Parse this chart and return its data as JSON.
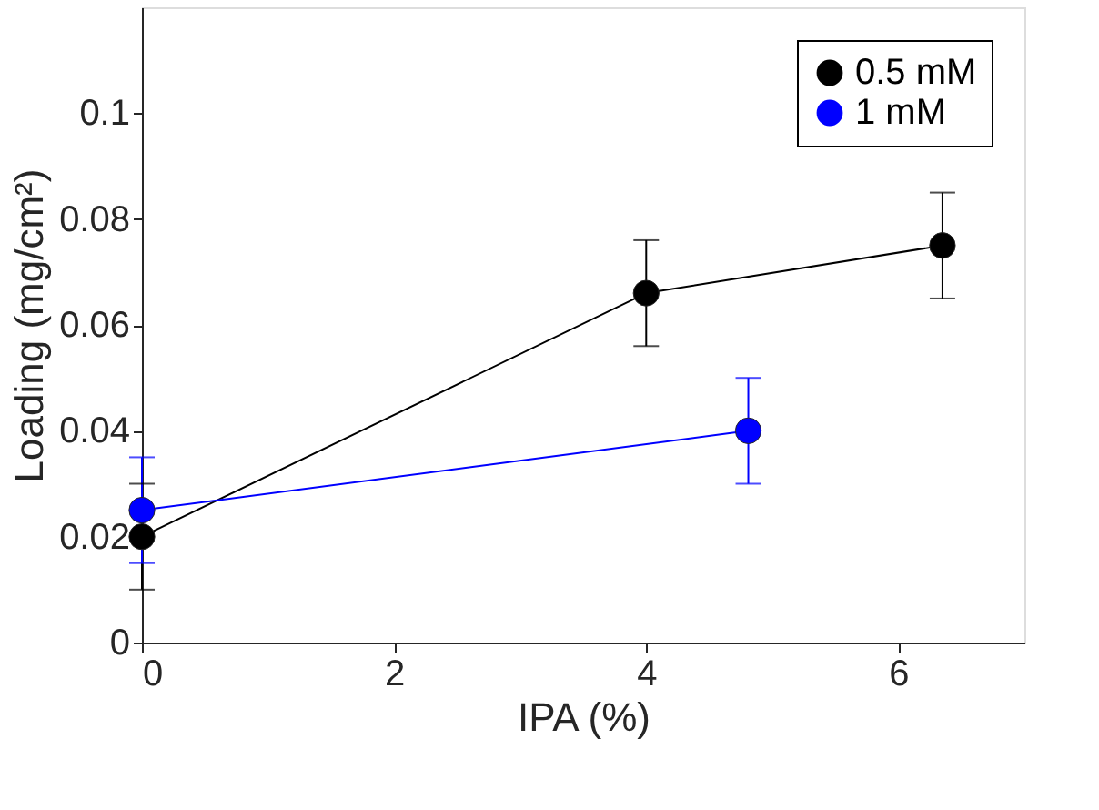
{
  "chart_data": {
    "type": "line",
    "xlabel": "IPA (%)",
    "ylabel": "Loading (mg/cm²)",
    "xlim": [
      0,
      7
    ],
    "xticks": [
      0,
      2,
      4,
      6
    ],
    "ylim": [
      0,
      0.12
    ],
    "yticks": [
      0,
      0.02,
      0.04,
      0.06,
      0.08,
      0.1
    ],
    "grid": false,
    "legend": "top right",
    "marker": "circle",
    "line_style": "solid",
    "series": [
      {
        "name": "0.5 mM",
        "color": "#000000",
        "x": [
          0,
          4,
          6.35
        ],
        "values": [
          0.02,
          0.066,
          0.075
        ],
        "errors": [
          0.01,
          0.01,
          0.01
        ]
      },
      {
        "name": "1 mM",
        "color": "#0000ff",
        "x": [
          0,
          4.81
        ],
        "values": [
          0.025,
          0.04
        ],
        "errors": [
          0.01,
          0.01
        ]
      }
    ]
  }
}
